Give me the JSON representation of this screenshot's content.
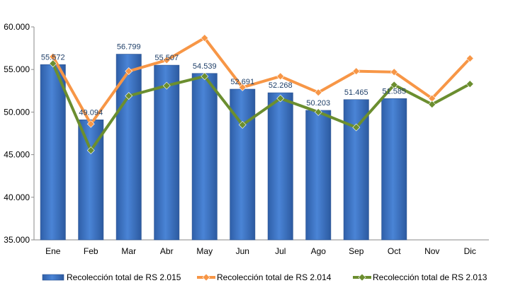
{
  "chart_data": {
    "type": "bar",
    "categories": [
      "Ene",
      "Feb",
      "Mar",
      "Abr",
      "May",
      "Jun",
      "Jul",
      "Ago",
      "Sep",
      "Oct",
      "Nov",
      "Dic"
    ],
    "series": [
      {
        "name": "Recolección total de RS 2.015",
        "type": "bar",
        "color": "#3a6fc4",
        "values": [
          55572,
          49094,
          56799,
          55507,
          54539,
          52691,
          52268,
          50203,
          51465,
          51585,
          null,
          null
        ],
        "labels": [
          "55.572",
          "49.094",
          "56.799",
          "55.507",
          "54.539",
          "52.691",
          "52.268",
          "50.203",
          "51.465",
          "51.585",
          "",
          ""
        ]
      },
      {
        "name": "Recolección total de RS 2.014",
        "type": "line",
        "color": "#f79646",
        "values": [
          56500,
          48600,
          54800,
          56100,
          58700,
          52900,
          54200,
          52300,
          54800,
          54700,
          51600,
          56300
        ]
      },
      {
        "name": "Recolección total de RS 2.013",
        "type": "line",
        "color": "#6b8e2f",
        "values": [
          55700,
          45500,
          51900,
          53100,
          54200,
          48500,
          51600,
          50000,
          48200,
          53200,
          50900,
          53300
        ]
      }
    ],
    "ylim": [
      35000,
      60000
    ],
    "yticks": [
      35000,
      40000,
      45000,
      50000,
      55000,
      60000
    ],
    "ytick_labels": [
      "35.000",
      "40.000",
      "45.000",
      "50.000",
      "55.000",
      "60.000"
    ],
    "legend_position": "bottom",
    "grid": false
  }
}
